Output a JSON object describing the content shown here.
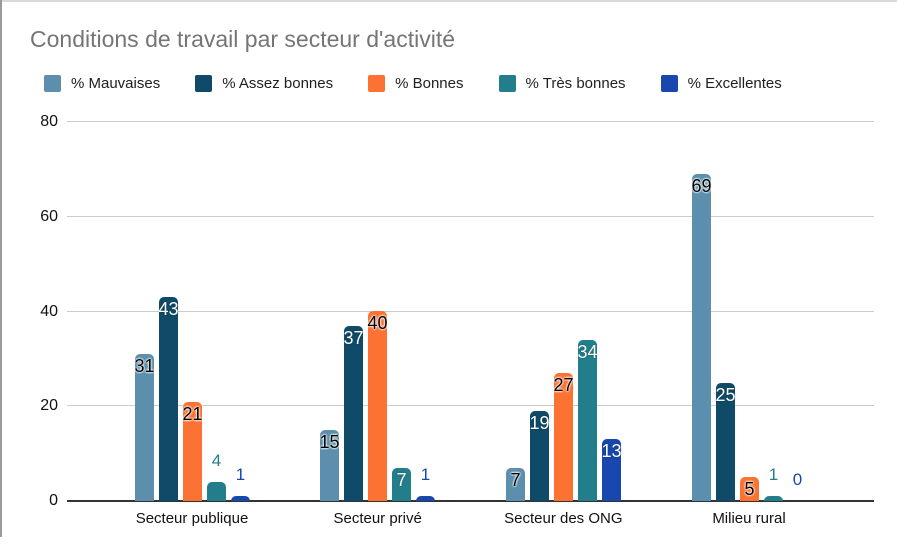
{
  "chart_data": {
    "type": "bar",
    "title": "Conditions de travail par secteur d'activité",
    "categories": [
      "Secteur publique",
      "Secteur privé",
      "Secteur des ONG",
      "Milieu rural"
    ],
    "series": [
      {
        "name": "% Mauvaises",
        "color": "#5b8fad",
        "inside_label_color": "dark",
        "values": [
          31,
          15,
          7,
          69
        ]
      },
      {
        "name": "% Assez bonnes",
        "color": "#0f4b68",
        "inside_label_color": "light",
        "values": [
          43,
          37,
          19,
          25
        ]
      },
      {
        "name": "% Bonnes",
        "color": "#fc7233",
        "inside_label_color": "dark",
        "values": [
          21,
          40,
          27,
          5
        ]
      },
      {
        "name": "% Très bonnes",
        "color": "#237e8c",
        "inside_label_color": "light",
        "values": [
          4,
          7,
          34,
          1
        ]
      },
      {
        "name": "% Excellentes",
        "color": "#1847ad",
        "inside_label_color": "light",
        "values": [
          1,
          1,
          13,
          0
        ]
      }
    ],
    "y_ticks": [
      0,
      20,
      40,
      60,
      80
    ],
    "ylim": [
      0,
      80
    ],
    "xlabel": "",
    "ylabel": "",
    "grid": true,
    "legend_position": "top",
    "value_labels_shown": true
  },
  "colors": {
    "title_text": "#757575",
    "axis_text": "#111111",
    "gridline": "#cccccc",
    "baseline": "#333333",
    "background": "#ffffff"
  }
}
